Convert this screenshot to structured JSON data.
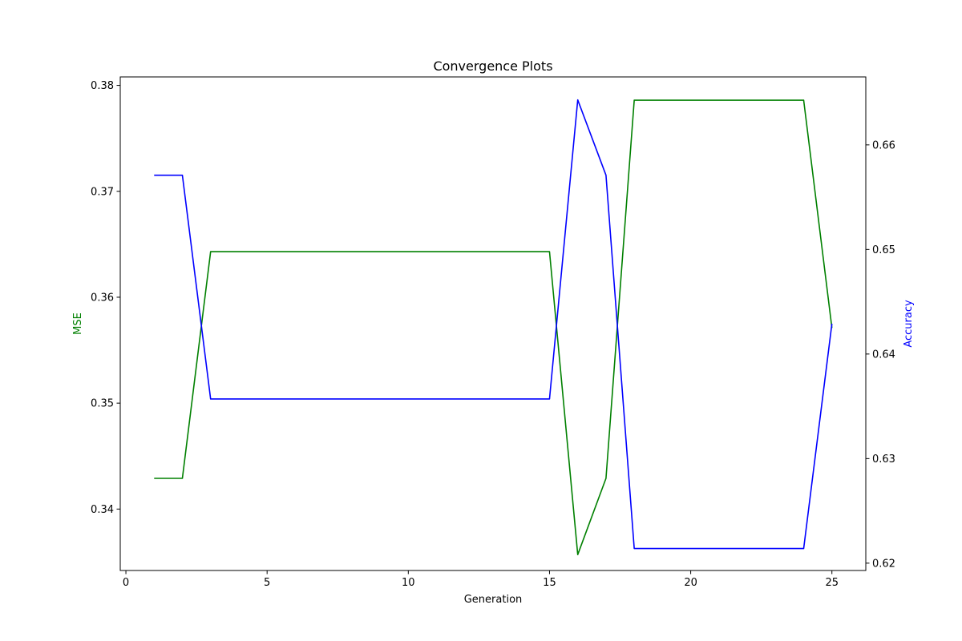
{
  "chart_data": {
    "type": "line",
    "title": "Convergence Plots",
    "xlabel": "Generation",
    "ylabel_left": "MSE",
    "ylabel_right": "Accuracy",
    "x": [
      1,
      2,
      3,
      4,
      5,
      6,
      7,
      8,
      9,
      10,
      11,
      12,
      13,
      14,
      15,
      16,
      17,
      18,
      19,
      20,
      21,
      22,
      23,
      24,
      25
    ],
    "xlim": [
      -0.2,
      26.2
    ],
    "xticks": [
      0,
      5,
      10,
      15,
      20,
      25
    ],
    "ylim_left": [
      0.3342,
      0.3808
    ],
    "yticks_left": [
      0.34,
      0.35,
      0.36,
      0.37,
      0.38
    ],
    "ylim_right": [
      0.6193,
      0.6665
    ],
    "yticks_right": [
      0.62,
      0.63,
      0.64,
      0.65,
      0.66
    ],
    "series": [
      {
        "name": "MSE",
        "axis": "left",
        "color": "#008000",
        "values": [
          0.3429,
          0.3429,
          0.3643,
          0.3643,
          0.3643,
          0.3643,
          0.3643,
          0.3643,
          0.3643,
          0.3643,
          0.3643,
          0.3643,
          0.3643,
          0.3643,
          0.3643,
          0.3357,
          0.3429,
          0.3786,
          0.3786,
          0.3786,
          0.3786,
          0.3786,
          0.3786,
          0.3786,
          0.3571
        ]
      },
      {
        "name": "Accuracy",
        "axis": "right",
        "color": "#0000ff",
        "values": [
          0.6571,
          0.6571,
          0.6357,
          0.6357,
          0.6357,
          0.6357,
          0.6357,
          0.6357,
          0.6357,
          0.6357,
          0.6357,
          0.6357,
          0.6357,
          0.6357,
          0.6357,
          0.6643,
          0.6571,
          0.6214,
          0.6214,
          0.6214,
          0.6214,
          0.6214,
          0.6214,
          0.6214,
          0.6429
        ]
      }
    ],
    "grid": false,
    "legend": "none"
  }
}
